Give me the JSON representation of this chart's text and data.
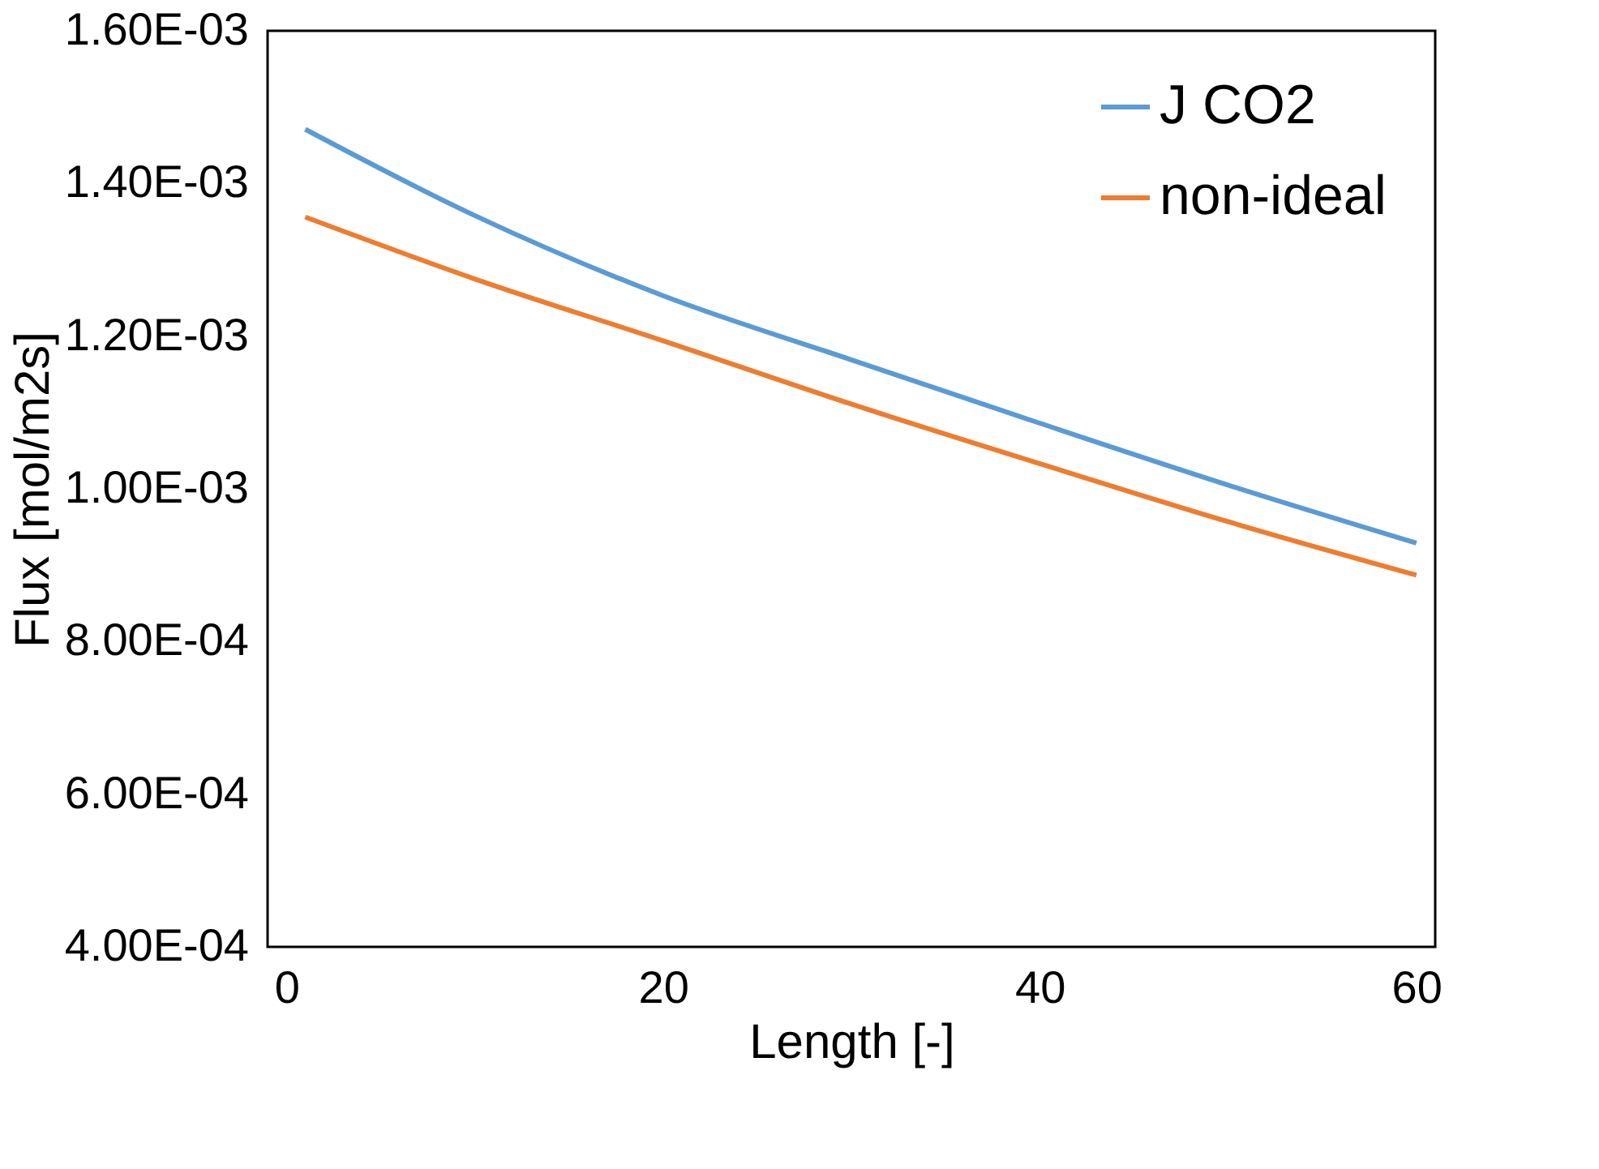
{
  "chart_data": {
    "type": "line",
    "xlabel": "Length [-]",
    "ylabel": "Flux [mol/m2s]",
    "x": [
      1,
      10,
      20,
      30,
      40,
      50,
      60
    ],
    "series": [
      {
        "name": "J CO2",
        "color": "#5b9bd5",
        "values": [
          0.001471,
          0.001358,
          0.001253,
          0.001169,
          0.001086,
          0.001005,
          0.000929
        ]
      },
      {
        "name": "non-ideal",
        "color": "#ed7d31",
        "values": [
          0.001356,
          0.001275,
          0.001194,
          0.001111,
          0.001033,
          0.000957,
          0.000887
        ]
      }
    ],
    "xlim": [
      -1,
      61
    ],
    "xticks": [
      0,
      20,
      40,
      60
    ],
    "ylim": [
      0.0004,
      0.0016
    ],
    "yticks": [
      {
        "value": 0.0004,
        "label": "4.00E-04"
      },
      {
        "value": 0.0006,
        "label": "6.00E-04"
      },
      {
        "value": 0.0008,
        "label": "8.00E-04"
      },
      {
        "value": 0.001,
        "label": "1.00E-03"
      },
      {
        "value": 0.0012,
        "label": "1.20E-03"
      },
      {
        "value": 0.0014,
        "label": "1.40E-03"
      },
      {
        "value": 0.0016,
        "label": "1.60E-03"
      }
    ],
    "grid": false,
    "legend": "top right",
    "marker": "none",
    "line_style": "solid"
  }
}
